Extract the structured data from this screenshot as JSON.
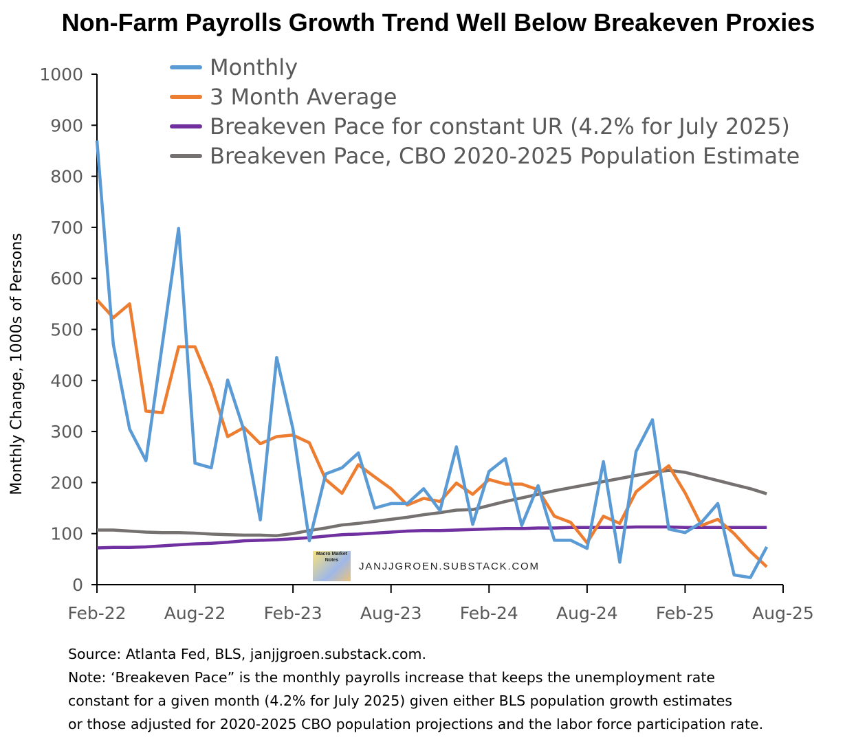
{
  "chart_data": {
    "type": "line",
    "title": "Non-Farm Payrolls Growth Trend Well Below Breakeven Proxies",
    "xlabel": "",
    "ylabel": "Monthly Change, 1000s of Persons",
    "ylim": [
      0,
      1000
    ],
    "yticks": [
      "0",
      "100",
      "200",
      "300",
      "400",
      "500",
      "600",
      "700",
      "800",
      "900",
      "1000"
    ],
    "xticks": [
      "Feb-22",
      "Aug-22",
      "Feb-23",
      "Aug-23",
      "Feb-24",
      "Aug-24",
      "Feb-25",
      "Aug-25"
    ],
    "x_start": "Feb-22",
    "x_end": "Aug-25",
    "n_months_axis": 42,
    "grid": false,
    "legend_position": "top",
    "series": [
      {
        "name": "Monthly",
        "color": "#5B9BD5",
        "values": [
          870,
          471,
          305,
          243,
          470,
          698,
          238,
          229,
          401,
          302,
          127,
          445,
          305,
          86,
          217,
          229,
          258,
          150,
          159,
          159,
          188,
          145,
          270,
          118,
          222,
          247,
          116,
          194,
          87,
          87,
          71,
          241,
          44,
          261,
          323,
          109,
          102,
          122,
          159,
          19,
          14,
          74
        ]
      },
      {
        "name": "3 Month Average",
        "color": "#ED7D31",
        "values": [
          558,
          523,
          550,
          340,
          337,
          466,
          466,
          389,
          290,
          308,
          276,
          290,
          293,
          278,
          206,
          179,
          235,
          211,
          188,
          156,
          169,
          163,
          199,
          177,
          206,
          197,
          197,
          186,
          134,
          122,
          82,
          134,
          120,
          182,
          208,
          233,
          180,
          116,
          128,
          100,
          65,
          35
        ]
      },
      {
        "name": "Breakeven Pace for constant UR (4.2% for July 2025)",
        "color": "#7030A0",
        "values": [
          72,
          73,
          73,
          74,
          76,
          78,
          80,
          81,
          83,
          86,
          87,
          88,
          90,
          92,
          95,
          98,
          99,
          101,
          103,
          105,
          106,
          106,
          107,
          108,
          109,
          110,
          110,
          111,
          111,
          112,
          112,
          112,
          112,
          113,
          113,
          113,
          112,
          112,
          112,
          112,
          112,
          112
        ]
      },
      {
        "name": "Breakeven Pace, CBO 2020-2025 Population Estimate",
        "color": "#767171",
        "values": [
          107,
          107,
          105,
          103,
          102,
          102,
          101,
          99,
          98,
          97,
          97,
          96,
          100,
          106,
          111,
          117,
          120,
          124,
          128,
          132,
          137,
          141,
          146,
          147,
          155,
          163,
          170,
          177,
          184,
          190,
          196,
          202,
          208,
          214,
          220,
          224,
          220,
          212,
          204,
          196,
          188,
          178
        ]
      }
    ]
  },
  "watermark": "JANJJGROEN.SUBSTACK.COM",
  "logo_text": "Macro Market Notes",
  "notes": [
    "Source: Atlanta Fed, BLS, janjjgroen.substack.com.",
    "Note: ‘Breakeven Pace” is the monthly payrolls increase that keeps the unemployment rate",
    "constant for a given month (4.2% for July 2025) given either BLS population growth estimates",
    "or those adjusted for 2020-2025 CBO population projections and the labor force participation rate."
  ]
}
